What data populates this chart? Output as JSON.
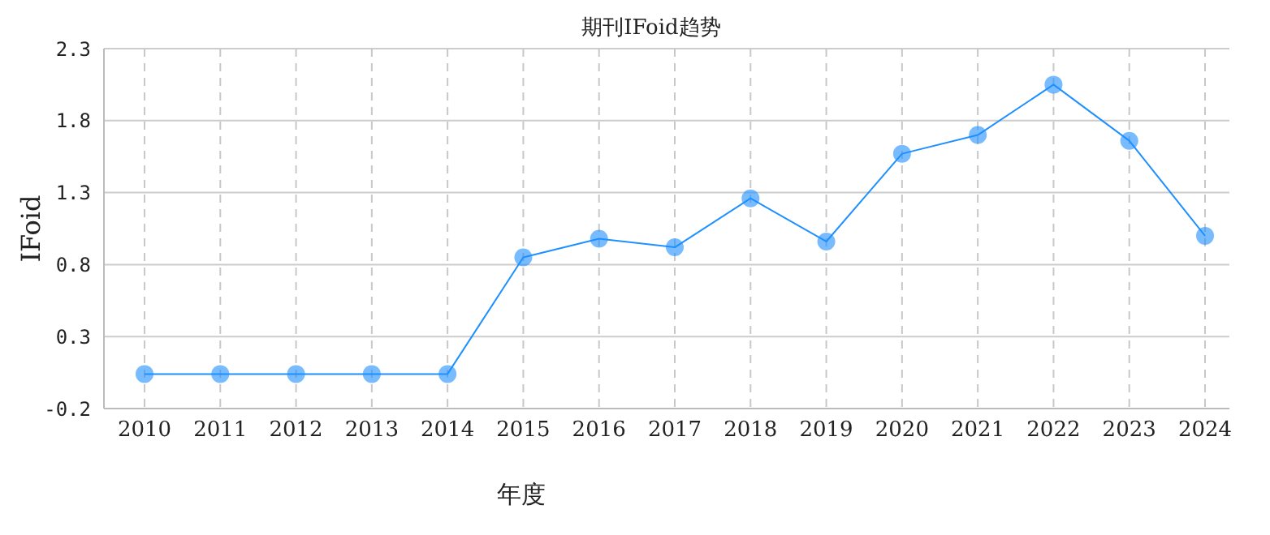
{
  "chart_data": {
    "type": "line",
    "title": "期刊IFoid趋势",
    "xlabel": "年度",
    "ylabel": "IFoid",
    "categories": [
      "2010",
      "2011",
      "2012",
      "2013",
      "2014",
      "2015",
      "2016",
      "2017",
      "2018",
      "2019",
      "2020",
      "2021",
      "2022",
      "2023",
      "2024"
    ],
    "series": [
      {
        "color": "#1e90ff",
        "values": [
          0.04,
          0.04,
          0.04,
          0.04,
          0.04,
          0.85,
          0.98,
          0.92,
          1.26,
          0.96,
          1.57,
          1.7,
          2.05,
          1.66,
          1.0
        ]
      }
    ],
    "ylim": [
      -0.2,
      2.3
    ],
    "yticks": [
      -0.2,
      0.3,
      0.8,
      1.3,
      1.8,
      2.3
    ],
    "grid": true,
    "marker": "circle",
    "line_style": "solid",
    "legend": false
  }
}
